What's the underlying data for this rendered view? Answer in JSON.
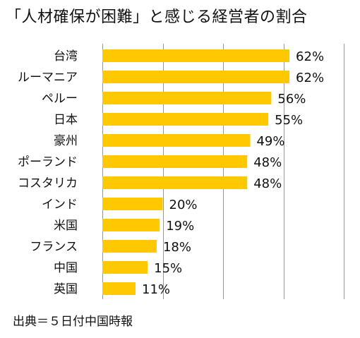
{
  "chart_data": {
    "type": "bar",
    "orientation": "horizontal",
    "title": "「人材確保が困難」と感じる経営者の割合",
    "source": "出典＝５日付中国時報",
    "categories": [
      "台湾",
      "ルーマニア",
      "ペルー",
      "日本",
      "豪州",
      "ポーランド",
      "コスタリカ",
      "インド",
      "米国",
      "フランス",
      "中国",
      "英国"
    ],
    "values": [
      62,
      62,
      56,
      55,
      49,
      48,
      48,
      20,
      19,
      18,
      15,
      11
    ],
    "value_labels": [
      "62%",
      "62%",
      "56%",
      "55%",
      "49%",
      "48%",
      "48%",
      "20%",
      "19%",
      "18%",
      "15%",
      "11%"
    ],
    "xlim": [
      0,
      80
    ],
    "grid": true,
    "bar_color": "#FFC800",
    "grid_color": "#999999"
  }
}
